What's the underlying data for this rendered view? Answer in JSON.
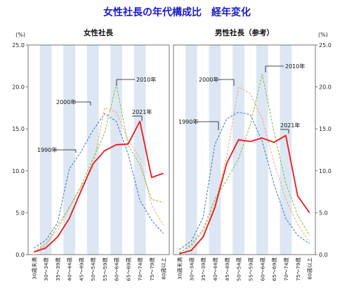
{
  "title": "女性社長の年代構成比　経年変化",
  "chart_data": [
    {
      "type": "line",
      "title": "女性社長",
      "ylabel": "(%)",
      "ylim": [
        0,
        25
      ],
      "yticks": [
        "0.0",
        "5.0",
        "10.0",
        "15.0",
        "20.0",
        "25.0"
      ],
      "categories": [
        "30歳未満",
        "30～34歳",
        "35～39歳",
        "40～44歳",
        "45～49歳",
        "50～54歳",
        "55～59歳",
        "60～64歳",
        "65～69歳",
        "70～74歳",
        "75～79歳",
        "80歳以上"
      ],
      "series": [
        {
          "name": "1990年",
          "color": "#3d6fc4",
          "dash": "3,2",
          "width": 1,
          "values": [
            0.8,
            1.7,
            3.8,
            10.2,
            12.3,
            14.8,
            16.8,
            15.9,
            12.0,
            6.5,
            4.1,
            2.5
          ]
        },
        {
          "name": "2000年",
          "color": "#f0a47a",
          "dash": "3,2",
          "width": 1,
          "values": [
            0.5,
            1.3,
            2.9,
            5.7,
            8.0,
            10.4,
            17.5,
            17.0,
            13.7,
            11.5,
            5.9,
            3.5
          ]
        },
        {
          "name": "2010年",
          "color": "#7dbb3a",
          "dash": "3,2",
          "width": 1,
          "values": [
            0.3,
            1.1,
            3.4,
            5.6,
            8.2,
            11.4,
            14.5,
            20.3,
            13.1,
            10.7,
            6.6,
            6.2
          ]
        },
        {
          "name": "2021年",
          "color": "#e8191e",
          "dash": "",
          "width": 1.8,
          "values": [
            0.3,
            0.8,
            2.1,
            4.3,
            7.6,
            10.8,
            12.4,
            13.1,
            13.2,
            15.9,
            9.2,
            9.7
          ]
        }
      ],
      "annotations": [
        "1990年",
        "2000年",
        "2010年",
        "2021年"
      ]
    },
    {
      "type": "line",
      "title": "男性社長（参考）",
      "ylabel": "(%)",
      "ylim": [
        0,
        25
      ],
      "yticks": [
        "0.0",
        "5.0",
        "10.0",
        "15.0",
        "20.0",
        "25.0"
      ],
      "categories": [
        "30歳未満",
        "30～34歳",
        "35～39歳",
        "40～44歳",
        "45～49歳",
        "50～54歳",
        "55～59歳",
        "60～64歳",
        "65～69歳",
        "70～74歳",
        "75～79歳",
        "80歳以上"
      ],
      "series": [
        {
          "name": "1990年",
          "color": "#3d6fc4",
          "dash": "3,2",
          "width": 1,
          "values": [
            0.6,
            1.6,
            4.4,
            13.1,
            16.2,
            17.0,
            16.7,
            13.5,
            8.4,
            4.3,
            2.3,
            1.3
          ]
        },
        {
          "name": "2000年",
          "color": "#f0a47a",
          "dash": "3,2",
          "width": 1,
          "values": [
            0.3,
            1.0,
            2.8,
            6.0,
            11.7,
            20.0,
            19.2,
            16.2,
            11.0,
            6.6,
            3.6,
            1.5
          ]
        },
        {
          "name": "2010年",
          "color": "#7dbb3a",
          "dash": "3,2",
          "width": 1,
          "values": [
            0.2,
            1.2,
            3.0,
            6.6,
            8.9,
            11.4,
            15.5,
            21.5,
            14.7,
            8.5,
            4.7,
            2.3
          ]
        },
        {
          "name": "2021年",
          "color": "#e8191e",
          "dash": "",
          "width": 1.8,
          "values": [
            0.1,
            0.5,
            2.1,
            5.6,
            10.9,
            13.7,
            13.5,
            13.9,
            13.4,
            14.2,
            7.0,
            5.0
          ]
        }
      ],
      "annotations": [
        "1990年",
        "2000年",
        "2010年",
        "2021年"
      ]
    }
  ]
}
